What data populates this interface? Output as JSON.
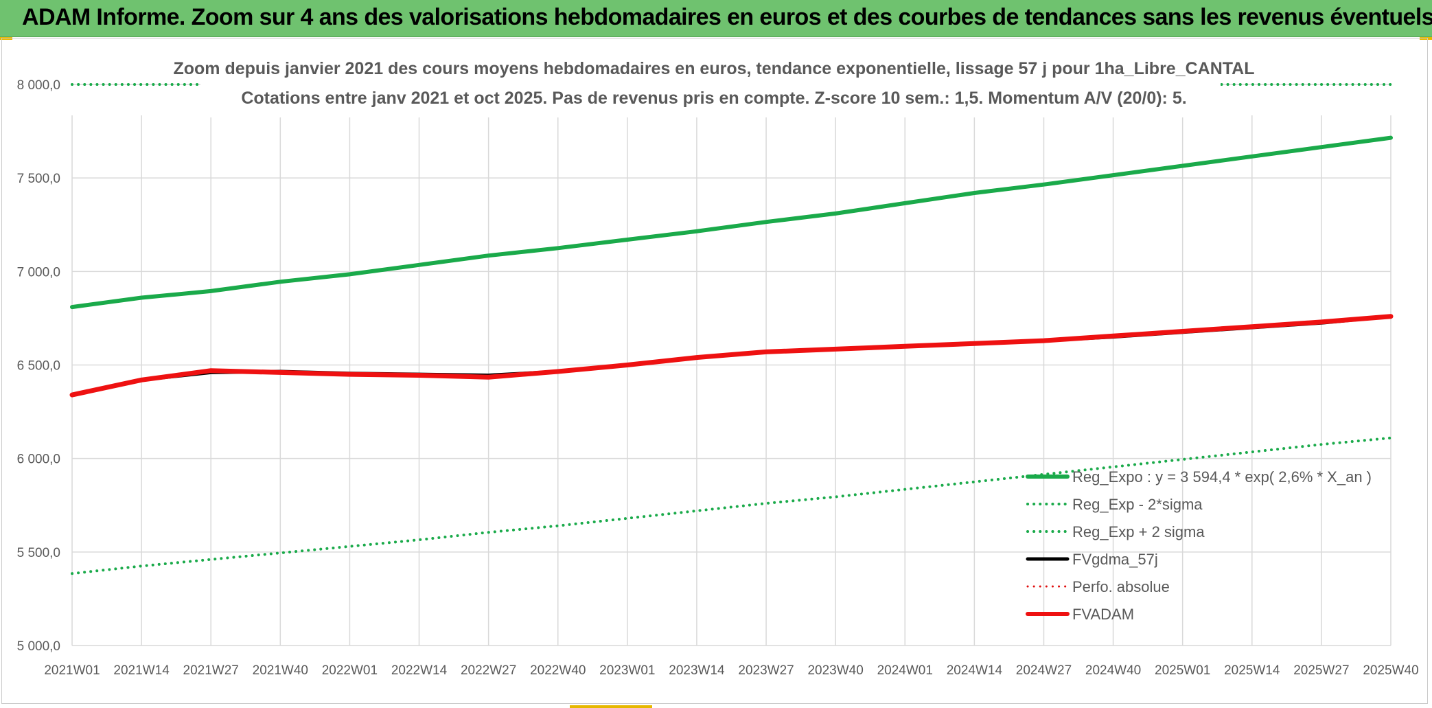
{
  "banner": {
    "title": "ADAM Informe. Zoom sur 4 ans des valorisations hebdomadaires en euros et des courbes de tendances sans les revenus éventuels"
  },
  "chart_data": {
    "type": "line",
    "title_line1": "Zoom depuis janvier 2021 des cours moyens hebdomadaires en euros, tendance exponentielle, lissage 57 j pour 1ha_Libre_CANTAL",
    "title_line2": "Cotations entre janv 2021 et oct 2025. Pas de revenus pris en compte. Z-score 10 sem.: 1,5. Momentum A/V (20/0): 5.",
    "xlabel": "",
    "ylabel": "",
    "ylim": [
      5000,
      8000
    ],
    "y_ticks": [
      5000,
      5500,
      6000,
      6500,
      7000,
      7500,
      8000
    ],
    "y_tick_labels": [
      "5 000,0",
      "5 500,0",
      "6 000,0",
      "6 500,0",
      "7 000,0",
      "7 500,0",
      "8 000,0"
    ],
    "x_tick_labels": [
      "2021W01",
      "2021W14",
      "2021W27",
      "2021W40",
      "2022W01",
      "2022W14",
      "2022W27",
      "2022W40",
      "2023W01",
      "2023W14",
      "2023W27",
      "2023W40",
      "2024W01",
      "2024W14",
      "2024W27",
      "2024W40",
      "2025W01",
      "2025W14",
      "2025W27",
      "2025W40"
    ],
    "grid": true,
    "legend_position": "bottom-right",
    "series": [
      {
        "name": "Reg_Expo : y = 3 594,4 * exp( 2,6% *  X_an )",
        "color": "#1aaa4a",
        "style": "solid",
        "width": 6,
        "values": [
          6810,
          6860,
          6895,
          6945,
          6985,
          7035,
          7085,
          7125,
          7170,
          7215,
          7265,
          7310,
          7365,
          7420,
          7465,
          7515,
          7565,
          7615,
          7665,
          7715
        ]
      },
      {
        "name": "Reg_Exp - 2*sigma",
        "color": "#1aaa4a",
        "style": "dotted",
        "width": 4,
        "values": [
          5385,
          5425,
          5460,
          5495,
          5530,
          5565,
          5605,
          5640,
          5680,
          5720,
          5760,
          5795,
          5835,
          5875,
          5915,
          5955,
          5995,
          6035,
          6075,
          6110
        ]
      },
      {
        "name": "Reg_Exp + 2 sigma",
        "color": "#1aaa4a",
        "style": "dotted",
        "width": 4,
        "values": [
          8000,
          8000,
          8000,
          8000,
          8000,
          8000,
          8000,
          8000,
          8000,
          8000,
          8000,
          8000,
          8000,
          8000,
          8000,
          8000,
          8000,
          8000,
          8000,
          8000
        ]
      },
      {
        "name": "FVgdma_57j",
        "color": "#000000",
        "style": "solid",
        "width": 5,
        "values": [
          6340,
          6420,
          6460,
          6465,
          6455,
          6450,
          6445,
          6465,
          6500,
          6540,
          6570,
          6585,
          6600,
          6615,
          6630,
          6650,
          6675,
          6700,
          6725,
          6760
        ]
      },
      {
        "name": "Perfo. absolue",
        "color": "#e01010",
        "style": "dotted",
        "width": 3,
        "values": []
      },
      {
        "name": "FVADAM",
        "color": "#ee1111",
        "style": "solid",
        "width": 7,
        "values": [
          6340,
          6420,
          6470,
          6460,
          6450,
          6445,
          6435,
          6465,
          6500,
          6540,
          6570,
          6585,
          6600,
          6615,
          6630,
          6655,
          6680,
          6705,
          6730,
          6760
        ]
      }
    ]
  }
}
